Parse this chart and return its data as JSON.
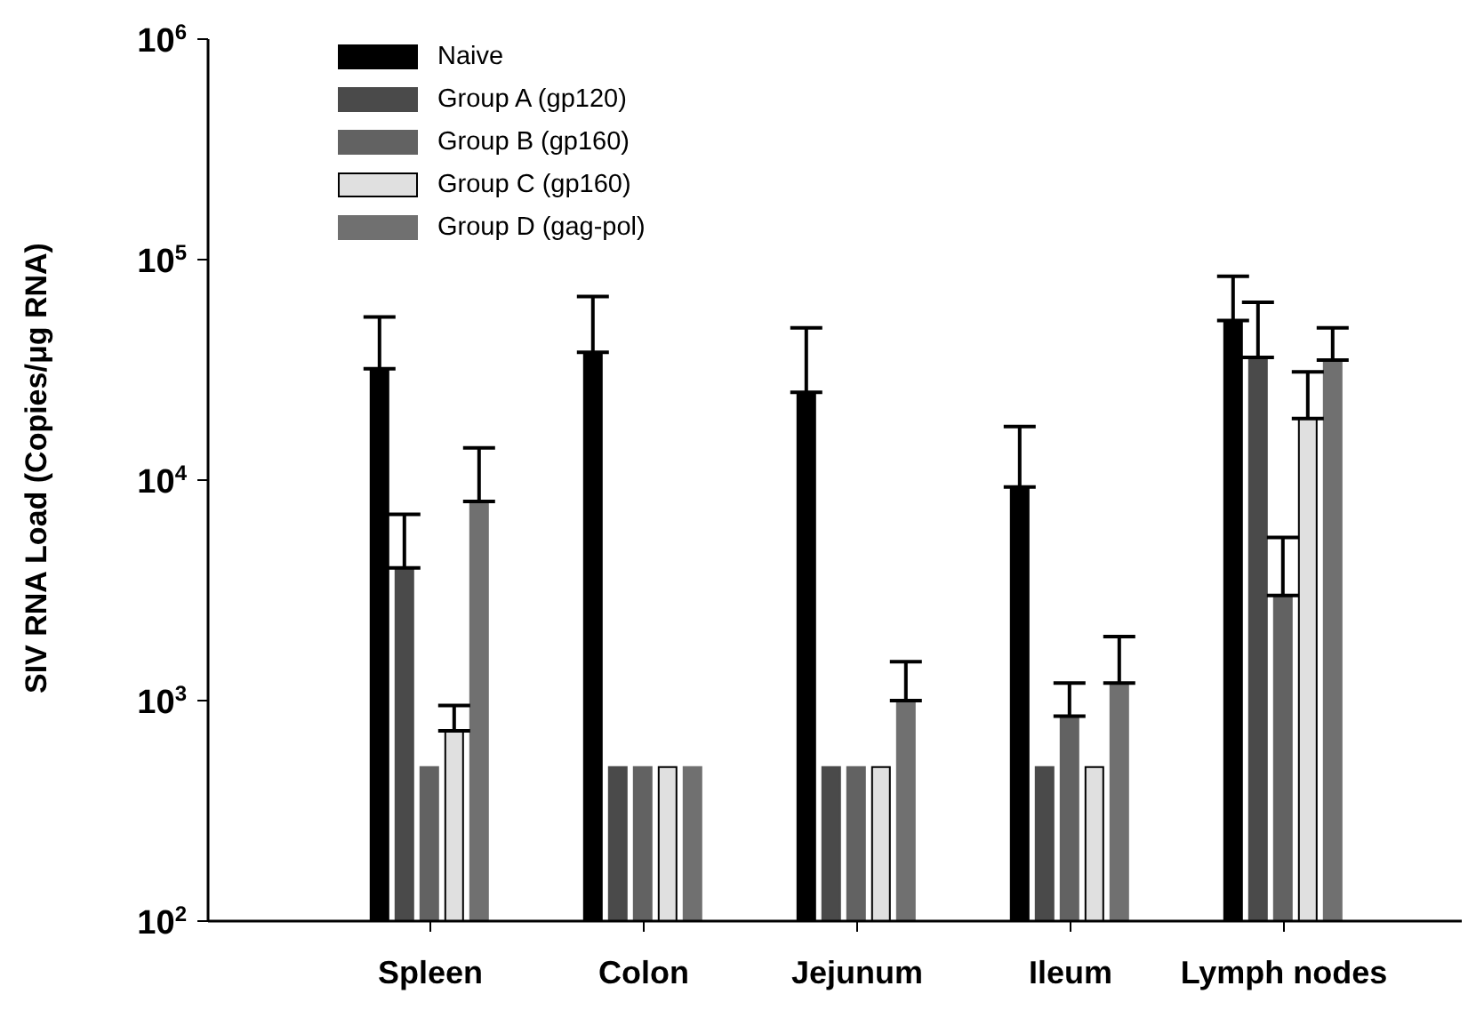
{
  "chart_data": {
    "type": "bar",
    "ylabel": "SIV RNA Load (Copies/μg RNA)",
    "categories": [
      "Spleen",
      "Colon",
      "Jejunum",
      "Ileum",
      "Lymph nodes"
    ],
    "series": [
      {
        "name": "Naive",
        "color": "#000000",
        "values": [
          32000,
          38000,
          25000,
          9300,
          53000
        ],
        "errors": [
          [
            32000,
            55000
          ],
          [
            38000,
            68000
          ],
          [
            25000,
            49000
          ],
          [
            9300,
            17500
          ],
          [
            53000,
            84000
          ]
        ]
      },
      {
        "name": "Group A (gp120)",
        "color": "#4a4a4a",
        "values": [
          4000,
          500,
          500,
          500,
          36000
        ],
        "errors": [
          [
            4000,
            7000
          ],
          null,
          null,
          null,
          [
            36000,
            64000
          ]
        ]
      },
      {
        "name": "Group B (gp160)",
        "color": "#626262",
        "values": [
          500,
          500,
          500,
          850,
          3000
        ],
        "errors": [
          null,
          null,
          null,
          [
            850,
            1200
          ],
          [
            3000,
            5500
          ]
        ]
      },
      {
        "name": "Group C (gp160)",
        "color": "#e0e0e0",
        "values": [
          730,
          500,
          500,
          500,
          19000
        ],
        "errors": [
          [
            730,
            950
          ],
          null,
          null,
          null,
          [
            19000,
            31000
          ]
        ]
      },
      {
        "name": "Group D (gag-pol)",
        "color": "#707070",
        "values": [
          8000,
          500,
          1000,
          1200,
          35000
        ],
        "errors": [
          [
            8000,
            14000
          ],
          null,
          [
            1000,
            1500
          ],
          [
            1200,
            1950
          ],
          [
            35000,
            49000
          ]
        ]
      }
    ],
    "log": true,
    "ylim": [
      100,
      1000000
    ],
    "yticks": [
      {
        "value": 100,
        "label": "10$^{2}$"
      },
      {
        "value": 1000,
        "label": "10$^{3}$"
      },
      {
        "value": 10000,
        "label": "10$^{4}$"
      },
      {
        "value": 100000,
        "label": "10$^{5}$"
      },
      {
        "value": 1000000,
        "label": "10$^{6}$"
      }
    ],
    "grid": false,
    "legend": "top left"
  }
}
